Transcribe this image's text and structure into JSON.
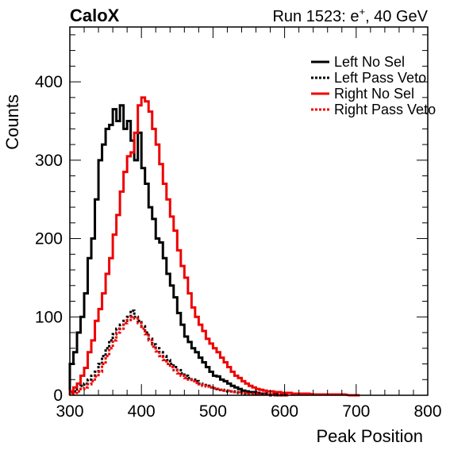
{
  "header": {
    "left": "CaloX",
    "right_prefix": "Run 1523: e",
    "right_sup": "+",
    "right_suffix": ", 40 GeV"
  },
  "chart_data": {
    "type": "line",
    "xlabel": "Peak Position",
    "ylabel": "Counts",
    "xlim": [
      300,
      800
    ],
    "ylim": [
      0,
      470
    ],
    "xticks": [
      300,
      400,
      500,
      600,
      700,
      800
    ],
    "yticks": [
      0,
      100,
      200,
      300,
      400
    ],
    "grid": false,
    "legend_position": "top-right",
    "series": [
      {
        "name": "Left No Sel",
        "color": "#000000",
        "style": "solid",
        "x": [
          300,
          305,
          310,
          315,
          320,
          325,
          330,
          335,
          340,
          345,
          350,
          355,
          360,
          365,
          370,
          375,
          380,
          385,
          390,
          395,
          400,
          405,
          410,
          415,
          420,
          425,
          430,
          435,
          440,
          445,
          450,
          455,
          460,
          465,
          470,
          475,
          480,
          485,
          490,
          495,
          500,
          505,
          510,
          515,
          520,
          525,
          530,
          535,
          540,
          545,
          550,
          555,
          560,
          565,
          570,
          575,
          580,
          585,
          590,
          595,
          600
        ],
        "values": [
          40,
          55,
          80,
          100,
          130,
          175,
          200,
          250,
          300,
          320,
          340,
          345,
          365,
          350,
          370,
          340,
          350,
          325,
          300,
          335,
          290,
          270,
          240,
          225,
          200,
          195,
          175,
          155,
          140,
          125,
          105,
          90,
          75,
          68,
          60,
          55,
          48,
          42,
          36,
          30,
          25,
          24,
          20,
          18,
          15,
          12,
          10,
          8,
          6,
          5,
          4,
          4,
          3,
          2,
          2,
          1,
          1,
          1,
          0,
          0,
          0
        ]
      },
      {
        "name": "Left Pass Veto",
        "color": "#000000",
        "style": "dotted",
        "x": [
          300,
          305,
          310,
          315,
          320,
          325,
          330,
          335,
          340,
          345,
          350,
          355,
          360,
          365,
          370,
          375,
          380,
          385,
          390,
          395,
          400,
          405,
          410,
          415,
          420,
          425,
          430,
          435,
          440,
          445,
          450,
          455,
          460,
          465,
          470,
          475,
          480,
          485,
          490,
          495,
          500,
          505,
          510,
          515,
          520,
          525,
          530,
          535,
          540,
          545,
          550,
          555,
          560,
          565,
          570,
          575,
          580,
          585,
          590,
          595,
          600
        ],
        "values": [
          3,
          5,
          8,
          12,
          15,
          20,
          25,
          30,
          40,
          50,
          60,
          70,
          78,
          85,
          90,
          95,
          100,
          108,
          100,
          95,
          88,
          80,
          72,
          65,
          60,
          55,
          50,
          45,
          40,
          36,
          32,
          28,
          25,
          22,
          20,
          18,
          15,
          13,
          12,
          10,
          9,
          8,
          7,
          6,
          5,
          5,
          4,
          3,
          3,
          2,
          2,
          2,
          1,
          1,
          1,
          1,
          0,
          0,
          0,
          0,
          0
        ]
      },
      {
        "name": "Right No Sel",
        "color": "#ee0000",
        "style": "solid",
        "x": [
          300,
          305,
          310,
          315,
          320,
          325,
          330,
          335,
          340,
          345,
          350,
          355,
          360,
          365,
          370,
          375,
          380,
          385,
          390,
          395,
          400,
          405,
          410,
          415,
          420,
          425,
          430,
          435,
          440,
          445,
          450,
          455,
          460,
          465,
          470,
          475,
          480,
          485,
          490,
          495,
          500,
          505,
          510,
          515,
          520,
          525,
          530,
          535,
          540,
          545,
          550,
          555,
          560,
          565,
          570,
          575,
          580,
          585,
          590,
          595,
          600,
          605,
          610,
          615,
          620,
          625,
          630,
          640,
          650,
          660,
          670,
          680,
          690,
          700
        ],
        "values": [
          5,
          10,
          15,
          25,
          35,
          55,
          70,
          95,
          110,
          130,
          155,
          175,
          205,
          230,
          260,
          285,
          305,
          310,
          335,
          370,
          380,
          375,
          362,
          340,
          320,
          295,
          270,
          250,
          228,
          210,
          185,
          165,
          150,
          130,
          112,
          100,
          90,
          82,
          72,
          66,
          60,
          55,
          48,
          42,
          36,
          30,
          25,
          22,
          18,
          15,
          12,
          10,
          8,
          7,
          6,
          5,
          5,
          4,
          4,
          3,
          3,
          3,
          2,
          2,
          2,
          2,
          2,
          1,
          1,
          1,
          1,
          1,
          0,
          0
        ]
      },
      {
        "name": "Right Pass Veto",
        "color": "#ee0000",
        "style": "dotted",
        "x": [
          300,
          305,
          310,
          315,
          320,
          325,
          330,
          335,
          340,
          345,
          350,
          355,
          360,
          365,
          370,
          375,
          380,
          385,
          390,
          395,
          400,
          405,
          410,
          415,
          420,
          425,
          430,
          435,
          440,
          445,
          450,
          455,
          460,
          465,
          470,
          475,
          480,
          485,
          490,
          495,
          500,
          505,
          510,
          515,
          520,
          525,
          530,
          535,
          540,
          545,
          550,
          555,
          560,
          565,
          570,
          575,
          580,
          585,
          590,
          595,
          600
        ],
        "values": [
          2,
          3,
          5,
          8,
          10,
          14,
          18,
          24,
          30,
          40,
          50,
          60,
          70,
          80,
          85,
          92,
          96,
          100,
          98,
          92,
          85,
          78,
          70,
          62,
          56,
          50,
          45,
          40,
          36,
          32,
          28,
          25,
          22,
          20,
          18,
          16,
          14,
          12,
          11,
          10,
          9,
          8,
          7,
          6,
          6,
          5,
          4,
          4,
          3,
          3,
          2,
          2,
          2,
          1,
          1,
          1,
          1,
          0,
          0,
          0,
          0
        ]
      }
    ]
  }
}
